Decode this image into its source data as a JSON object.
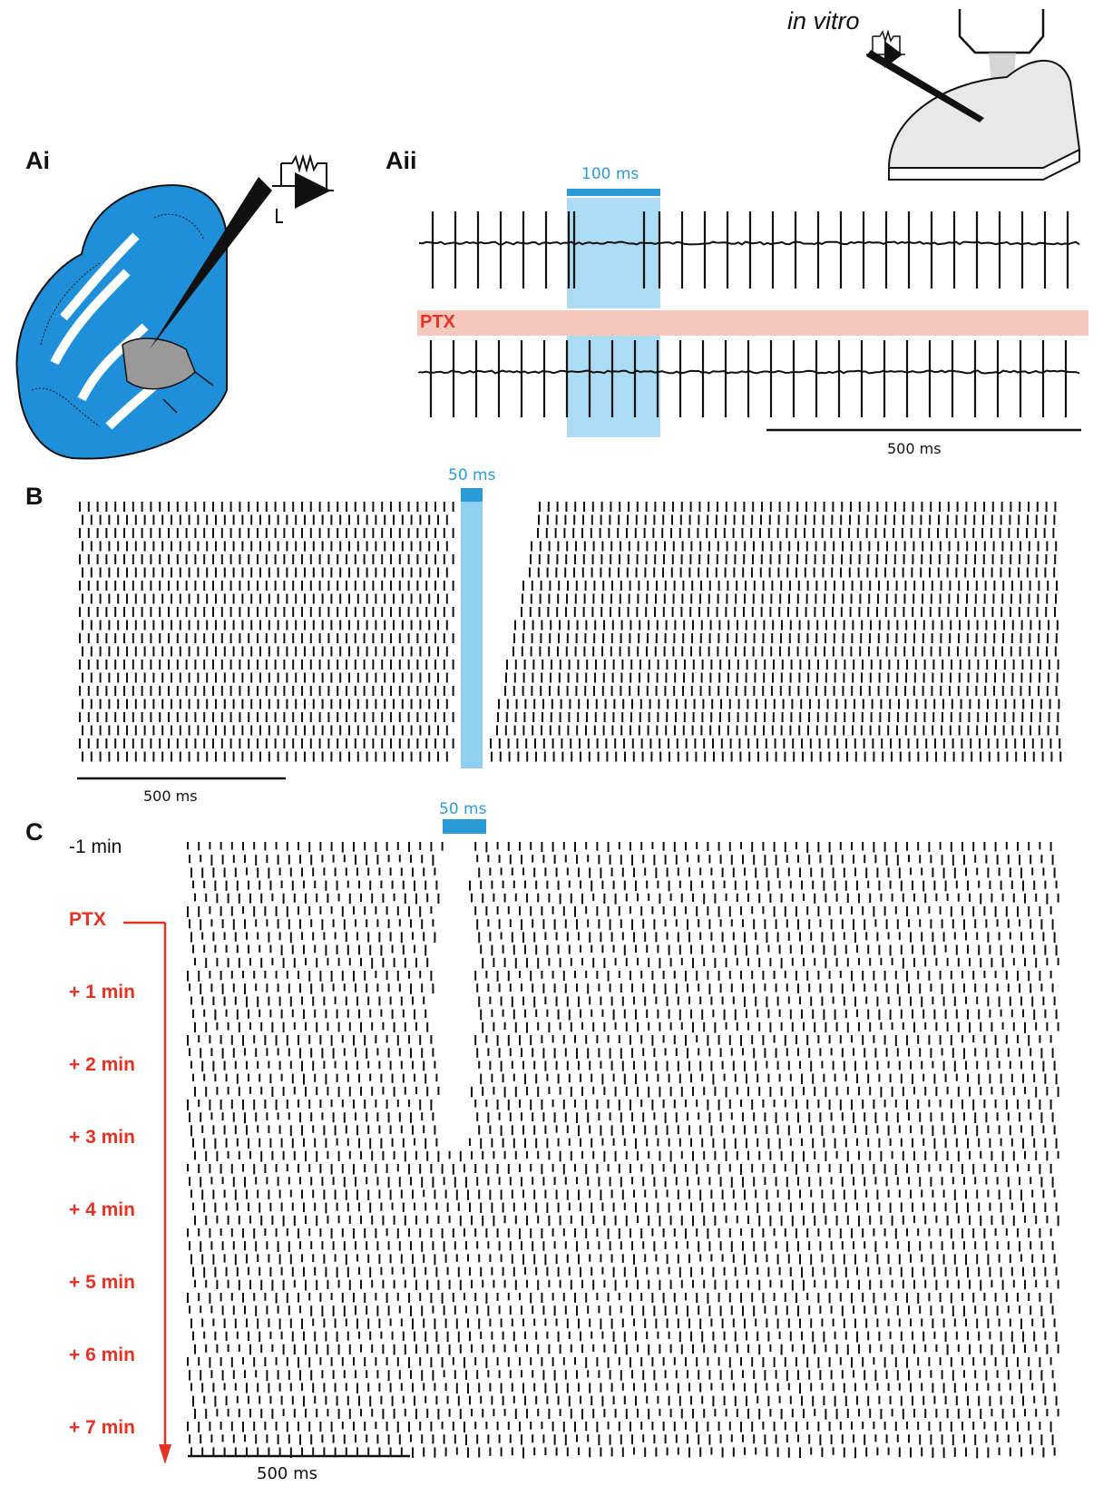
{
  "panels": {
    "ai": {
      "label": "Ai"
    },
    "aii": {
      "label": "Aii"
    },
    "b": {
      "label": "B"
    },
    "c": {
      "label": "C"
    }
  },
  "invitro": {
    "label": "in vitro"
  },
  "aii": {
    "stim_label": "100 ms",
    "drug_label": "PTX",
    "scale_label": "500 ms"
  },
  "b": {
    "stim_label": "50 ms",
    "scale_label": "500 ms",
    "rows": 20
  },
  "c": {
    "stim_label": "50 ms",
    "scale_label": "500 ms",
    "rows": 48,
    "time_labels": [
      "-1 min",
      "PTX",
      "+ 1 min",
      "+ 2 min",
      "+ 3 min",
      "+ 4 min",
      "+ 5 min",
      "+ 6 min",
      "+ 7 min"
    ]
  },
  "colors": {
    "cortex_blue": "#1e8fd8",
    "light_blue": "#8fd0f0",
    "stim_blue": "#2b9bd8",
    "ptx_red": "#e53224",
    "ptx_band": "#f6c8bd",
    "nucleus_gray": "#999999"
  },
  "icons": [
    "cerebellum-diagram-icon",
    "electrode-amplifier-icon",
    "slice-setup-icon"
  ]
}
